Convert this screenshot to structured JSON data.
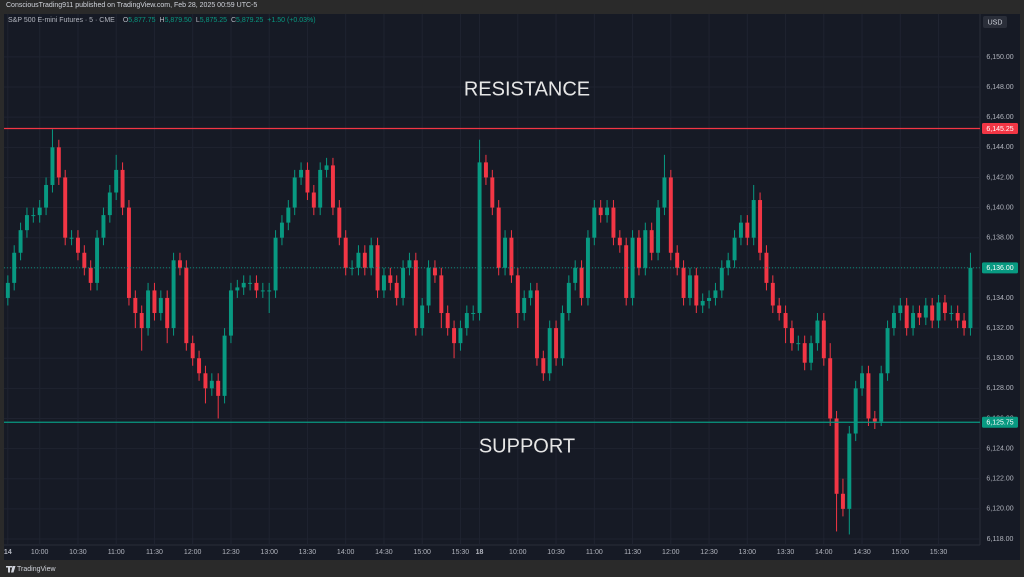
{
  "header": {
    "published": "ConsciousTrading911 published on TradingView.com, Feb 28, 2025 00:59 UTC-5",
    "symbol": "S&P 500 E-mini Futures · 5 · CME",
    "ohlc": [
      {
        "key": "O",
        "value": "5,877.75"
      },
      {
        "key": "H",
        "value": "5,879.50"
      },
      {
        "key": "L",
        "value": "5,875.25"
      },
      {
        "key": "C",
        "value": "5,879.25"
      }
    ],
    "change": "+1.50 (+0.03%)",
    "currency": "USD"
  },
  "footer": {
    "brand": "TradingView"
  },
  "chart_data": {
    "type": "candlestick",
    "annotations": [
      {
        "text": "RESISTANCE",
        "value": 6147.8
      },
      {
        "text": "SUPPORT",
        "value": 6124.1
      }
    ],
    "up_color": "#089981",
    "down_color": "#f23645",
    "price_lines": [
      {
        "value": 6145.25,
        "label": "6,145.25",
        "color": "#f23645"
      },
      {
        "value": 6125.75,
        "label": "6,125.75",
        "color": "#089981"
      },
      {
        "value": 6136,
        "label": "6,136.00",
        "color": "#089981",
        "dashed": true
      }
    ],
    "ylim": [
      6117.6,
      6152.85
    ],
    "yticks": [
      {
        "value": 6118,
        "label": "6,118.00"
      },
      {
        "value": 6120,
        "label": "6,120.00"
      },
      {
        "value": 6122,
        "label": "6,122.00"
      },
      {
        "value": 6124,
        "label": "6,124.00"
      },
      {
        "value": 6126,
        "label": "6,126.00"
      },
      {
        "value": 6128,
        "label": "6,128.00"
      },
      {
        "value": 6130,
        "label": "6,130.00"
      },
      {
        "value": 6132,
        "label": "6,132.00"
      },
      {
        "value": 6134,
        "label": "6,134.00"
      },
      {
        "value": 6136,
        "label": "6,136.00"
      },
      {
        "value": 6138,
        "label": "6,138.00"
      },
      {
        "value": 6140,
        "label": "6,140.00"
      },
      {
        "value": 6142,
        "label": "6,142.00"
      },
      {
        "value": 6144,
        "label": "6,144.00"
      },
      {
        "value": 6146,
        "label": "6,146.00"
      },
      {
        "value": 6148,
        "label": "6,148.00"
      },
      {
        "value": 6150,
        "label": "6,150.00"
      }
    ],
    "xlim": [
      -0.6,
      152.5
    ],
    "xticks": [
      {
        "value": 0,
        "label": "14"
      },
      {
        "value": 5,
        "label": "10:00"
      },
      {
        "value": 11,
        "label": "10:30"
      },
      {
        "value": 17,
        "label": "11:00"
      },
      {
        "value": 23,
        "label": "11:30"
      },
      {
        "value": 29,
        "label": "12:00"
      },
      {
        "value": 35,
        "label": "12:30"
      },
      {
        "value": 41,
        "label": "13:00"
      },
      {
        "value": 47,
        "label": "13:30"
      },
      {
        "value": 53,
        "label": "14:00"
      },
      {
        "value": 59,
        "label": "14:30"
      },
      {
        "value": 65,
        "label": "15:00"
      },
      {
        "value": 71,
        "label": "15:30"
      },
      {
        "value": 74,
        "label": "18"
      },
      {
        "value": 80,
        "label": "10:00"
      },
      {
        "value": 86,
        "label": "10:30"
      },
      {
        "value": 92,
        "label": "11:00"
      },
      {
        "value": 98,
        "label": "11:30"
      },
      {
        "value": 104,
        "label": "12:00"
      },
      {
        "value": 110,
        "label": "12:30"
      },
      {
        "value": 116,
        "label": "13:00"
      },
      {
        "value": 122,
        "label": "13:30"
      },
      {
        "value": 128,
        "label": "14:00"
      },
      {
        "value": 134,
        "label": "14:30"
      },
      {
        "value": 140,
        "label": "15:00"
      },
      {
        "value": 146,
        "label": "15:30"
      }
    ],
    "open": [
      6134,
      6135,
      6137,
      6138.5,
      6139.5,
      6139.5,
      6140,
      6141.5,
      6144,
      6142,
      6138,
      6138,
      6137,
      6136,
      6135,
      6138,
      6139.5,
      6141,
      6142.5,
      6140,
      6134,
      6133,
      6132,
      6134.5,
      6133,
      6134,
      6132,
      6136.5,
      6136,
      6131,
      6130,
      6129,
      6128,
      6128.5,
      6127.5,
      6131.5,
      6134.5,
      6134.7,
      6135,
      6135,
      6134.5,
      6134.5,
      6134.5,
      6138,
      6139,
      6140,
      6142,
      6142.5,
      6141,
      6140,
      6142.5,
      6142.8,
      6140,
      6138,
      6136,
      6136,
      6137,
      6136,
      6137.5,
      6134.5,
      6135.5,
      6135,
      6134,
      6136,
      6136.5,
      6132,
      6133.5,
      6136,
      6135.5,
      6133,
      6132,
      6131,
      6132,
      6133,
      6133,
      6143,
      6142,
      6140,
      6136,
      6138,
      6135.5,
      6133,
      6134,
      6134.5,
      6130,
      6129,
      6132,
      6130,
      6133,
      6135,
      6136,
      6134,
      6138,
      6140,
      6139.5,
      6140,
      6138,
      6137.5,
      6134,
      6138,
      6136,
      6138.5,
      6137,
      6140,
      6142,
      6137,
      6136,
      6134,
      6135.5,
      6133.5,
      6133.8,
      6134,
      6134.5,
      6136,
      6136.5,
      6138,
      6139,
      6138,
      6140.5,
      6137,
      6135,
      6133.5,
      6133,
      6132,
      6131,
      6131,
      6129.7,
      6131,
      6132.5,
      6130,
      6126,
      6121,
      6120,
      6125,
      6128,
      6129,
      6126,
      6125.8,
      6129,
      6132,
      6133,
      6133.5,
      6132,
      6133,
      6132.7,
      6133.5,
      6132.5,
      6133.7,
      6133,
      6133,
      6132.5,
      6132
    ],
    "high": [
      6135.5,
      6137.5,
      6139,
      6140,
      6140,
      6140.5,
      6142,
      6145.2,
      6144.5,
      6142.5,
      6138.5,
      6138.5,
      6137.5,
      6136.5,
      6138.5,
      6140,
      6141.5,
      6143.5,
      6143,
      6140.5,
      6134.5,
      6133.5,
      6135,
      6135,
      6134.5,
      6134.5,
      6137,
      6137,
      6136.5,
      6131.5,
      6130.5,
      6129.5,
      6129,
      6129,
      6132,
      6135,
      6135.2,
      6135.5,
      6135.5,
      6135.5,
      6135,
      6135,
      6138.5,
      6139.5,
      6140.5,
      6142.5,
      6143,
      6143,
      6141.5,
      6143,
      6143.3,
      6143.3,
      6140.5,
      6138.5,
      6136.5,
      6137.5,
      6137.5,
      6138,
      6138,
      6136,
      6136,
      6135.5,
      6136.5,
      6137,
      6137,
      6134,
      6136.5,
      6136.5,
      6136,
      6133.5,
      6132.5,
      6132.5,
      6133.5,
      6133.5,
      6144.5,
      6143.5,
      6142.5,
      6140.5,
      6138.5,
      6138.5,
      6136,
      6134.5,
      6135,
      6135,
      6130.5,
      6132.5,
      6132.5,
      6133.5,
      6135.5,
      6136.5,
      6136.5,
      6138.5,
      6140.5,
      6140.5,
      6140.5,
      6140.5,
      6138.5,
      6138,
      6138.5,
      6138.5,
      6139,
      6139,
      6140.5,
      6143.5,
      6142.5,
      6137.5,
      6136.5,
      6136,
      6136,
      6134.3,
      6134.5,
      6135,
      6136.5,
      6137,
      6138.5,
      6139.5,
      6139.5,
      6141.5,
      6141,
      6137.5,
      6135.5,
      6134,
      6133.5,
      6132.5,
      6131.5,
      6131.5,
      6131.5,
      6133,
      6133,
      6131,
      6126.5,
      6122,
      6125.5,
      6128.5,
      6129.5,
      6129.5,
      6126.5,
      6129.5,
      6132.5,
      6133.5,
      6134,
      6134,
      6133.5,
      6133.5,
      6134,
      6134,
      6134.2,
      6134.2,
      6133.5,
      6133.5,
      6133,
      6137
    ],
    "low": [
      6133.5,
      6134.5,
      6136.5,
      6138,
      6139,
      6139,
      6139.5,
      6141,
      6141.5,
      6137.5,
      6137.5,
      6136.5,
      6135.5,
      6134.5,
      6134.5,
      6137.5,
      6139,
      6140.5,
      6139.5,
      6133.5,
      6132,
      6130.5,
      6131.5,
      6132.5,
      6132.5,
      6131,
      6131.5,
      6135.5,
      6130.5,
      6129.5,
      6128.5,
      6127,
      6127.5,
      6126,
      6127,
      6131,
      6134,
      6134.2,
      6134.5,
      6134,
      6134,
      6133,
      6134,
      6137.5,
      6138.5,
      6139.5,
      6141.5,
      6140.5,
      6139.5,
      6139.5,
      6142,
      6139.5,
      6137.5,
      6135.5,
      6135.5,
      6135.5,
      6135.5,
      6135.5,
      6134,
      6134,
      6134.5,
      6133.5,
      6133.5,
      6135.5,
      6131.5,
      6131.5,
      6133,
      6135,
      6132,
      6131.5,
      6130,
      6130.5,
      6131.5,
      6132.5,
      6132.5,
      6141.5,
      6139.5,
      6135.5,
      6135.5,
      6135,
      6132,
      6132.5,
      6133.5,
      6129.5,
      6128.5,
      6128.5,
      6129.5,
      6129.5,
      6132.5,
      6134.5,
      6133.5,
      6133.5,
      6137.5,
      6139,
      6139,
      6137.5,
      6137,
      6133.5,
      6133.5,
      6135.5,
      6135.5,
      6136.5,
      6136.5,
      6139.5,
      6136.5,
      6135.5,
      6133.5,
      6133.5,
      6133,
      6133,
      6133.3,
      6133.5,
      6134,
      6135.5,
      6136,
      6137.5,
      6137.5,
      6137.5,
      6136.5,
      6134.5,
      6133,
      6132.5,
      6131,
      6130.5,
      6130.5,
      6129.2,
      6129.2,
      6130.5,
      6129.5,
      6125.5,
      6118.5,
      6119.5,
      6118.3,
      6124.5,
      6127.5,
      6125.5,
      6125.3,
      6125.5,
      6128.5,
      6131.5,
      6132.5,
      6131.5,
      6131.5,
      6132.2,
      6132.2,
      6132,
      6132,
      6132.5,
      6132.5,
      6132,
      6131.5,
      6131.5
    ],
    "close": [
      6135,
      6137,
      6138.5,
      6139.5,
      6139.5,
      6140,
      6141.5,
      6144,
      6142,
      6138,
      6138,
      6137,
      6136,
      6135,
      6138,
      6139.5,
      6141,
      6142.5,
      6140,
      6134,
      6133,
      6132,
      6134.5,
      6133,
      6134,
      6132,
      6136.5,
      6136,
      6131,
      6130,
      6129,
      6128,
      6128.5,
      6127.5,
      6131.5,
      6134.5,
      6134.7,
      6135,
      6135,
      6134.5,
      6134.5,
      6134.5,
      6138,
      6139,
      6140,
      6142,
      6142.5,
      6141,
      6140,
      6142.5,
      6142.8,
      6140,
      6138,
      6136,
      6136,
      6137,
      6136,
      6137.5,
      6134.5,
      6135.5,
      6135,
      6134,
      6136,
      6136.5,
      6132,
      6133.5,
      6136,
      6135.5,
      6133,
      6132,
      6131,
      6132,
      6133,
      6133,
      6143,
      6142,
      6140,
      6136,
      6138,
      6135.5,
      6133,
      6134,
      6134.5,
      6130,
      6129,
      6132,
      6130,
      6133,
      6135,
      6136,
      6134,
      6138,
      6140,
      6139.5,
      6140,
      6138,
      6137.5,
      6134,
      6138,
      6136,
      6138.5,
      6137,
      6140,
      6142,
      6137,
      6136,
      6134,
      6135.5,
      6133.5,
      6133.8,
      6134,
      6134.5,
      6136,
      6136.5,
      6138,
      6139,
      6138,
      6140.5,
      6137,
      6135,
      6133.5,
      6133,
      6132,
      6131,
      6131,
      6129.7,
      6131,
      6132.5,
      6130,
      6126,
      6121,
      6120,
      6125,
      6128,
      6129,
      6126,
      6125.8,
      6129,
      6132,
      6133,
      6133.5,
      6132,
      6133,
      6132.7,
      6133.5,
      6132.5,
      6133.7,
      6133,
      6133,
      6132.5,
      6132,
      6136
    ]
  }
}
